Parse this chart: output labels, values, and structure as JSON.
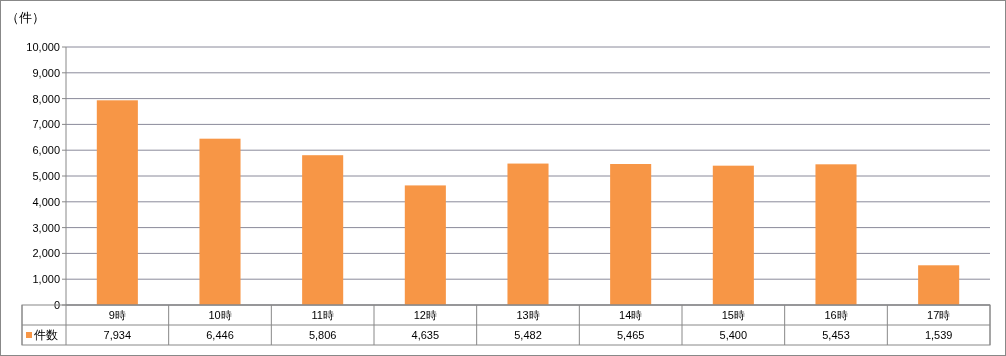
{
  "chart_data": {
    "type": "bar",
    "ylabel": "（件）",
    "categories": [
      "9時",
      "10時",
      "11時",
      "12時",
      "13時",
      "14時",
      "15時",
      "16時",
      "17時"
    ],
    "series": [
      {
        "name": "件数",
        "color": "#f79646",
        "values": [
          7934,
          6446,
          5806,
          4635,
          5482,
          5465,
          5400,
          5453,
          1539
        ],
        "value_labels": [
          "7,934",
          "6,446",
          "5,806",
          "4,635",
          "5,482",
          "5,465",
          "5,400",
          "5,453",
          "1,539"
        ]
      }
    ],
    "ylim": [
      0,
      10000
    ],
    "yticks": [
      0,
      {
        "value": 1000,
        "label": "1,000"
      },
      {
        "value": 2000,
        "label": "2,000"
      },
      {
        "value": 3000,
        "label": "3,000"
      },
      {
        "value": 4000,
        "label": "4,000"
      },
      {
        "value": 5000,
        "label": "5,000"
      },
      {
        "value": 6000,
        "label": "6,000"
      },
      {
        "value": 7000,
        "label": "7,000"
      },
      {
        "value": 8000,
        "label": "8,000"
      },
      {
        "value": 9000,
        "label": "9,000"
      },
      {
        "value": 10000,
        "label": "10,000"
      }
    ],
    "grid": "y",
    "legend": "bottom"
  }
}
